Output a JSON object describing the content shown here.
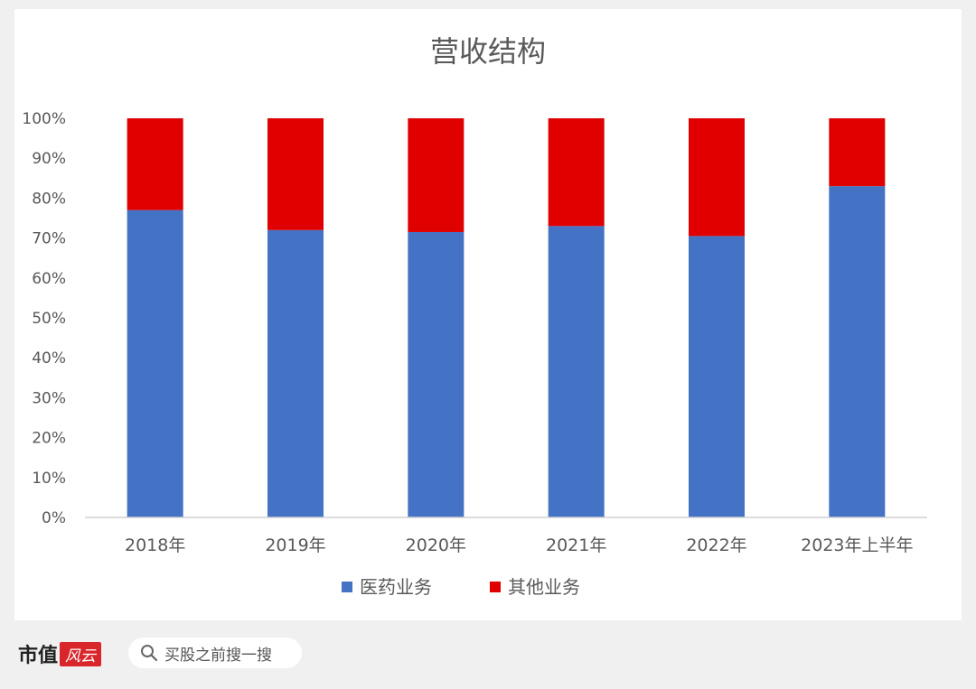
{
  "chart_data": {
    "type": "bar",
    "stacked": true,
    "title": "营收结构",
    "categories": [
      "2018年",
      "2019年",
      "2020年",
      "2021年",
      "2022年",
      "2023年上半年"
    ],
    "series": [
      {
        "name": "医药业务",
        "color": "#4472c4",
        "values": [
          77,
          72,
          71.5,
          73,
          70.5,
          83
        ]
      },
      {
        "name": "其他业务",
        "color": "#e00000",
        "values": [
          23,
          28,
          28.5,
          27,
          29.5,
          17
        ]
      }
    ],
    "ylim": [
      0,
      100
    ],
    "yticks": [
      "0%",
      "10%",
      "20%",
      "30%",
      "40%",
      "50%",
      "60%",
      "70%",
      "80%",
      "90%",
      "100%"
    ],
    "legend_position": "bottom",
    "grid": false
  },
  "footer": {
    "brand": "市值",
    "brand_badge": "风云",
    "search_placeholder": "买股之前搜一搜"
  }
}
